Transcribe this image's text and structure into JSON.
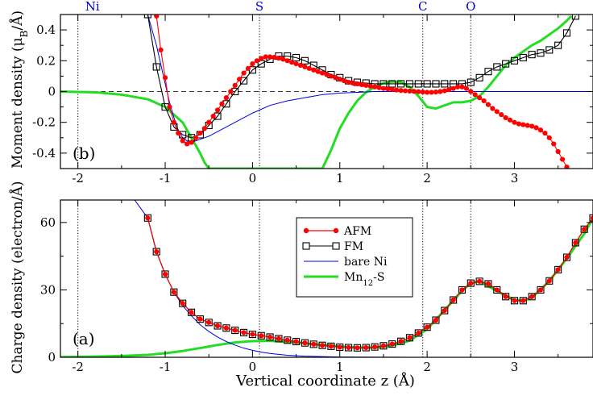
{
  "chart_data": [
    {
      "type": "line",
      "panel_label": "(b)",
      "ylabel": "Moment density (μB/Å)",
      "ylabel_parts": {
        "main": "Moment density (μ",
        "sub": "B",
        "tail": "/Å)"
      },
      "xlim": [
        -2.2,
        3.9
      ],
      "ylim": [
        -0.5,
        0.5
      ],
      "x_ticks": [
        -2,
        -1,
        0,
        1,
        2,
        3
      ],
      "x_tick_labels": [
        "-2",
        "-1",
        "0",
        "1",
        "2",
        "3"
      ],
      "y_ticks": [
        -0.4,
        -0.2,
        0,
        0.2,
        0.4
      ],
      "y_tick_labels": [
        "-0.4",
        "-0.2",
        "0",
        "0.2",
        "0.4"
      ],
      "atom_markers": [
        {
          "label": "Ni",
          "x": -2.0
        },
        {
          "label": "S",
          "x": 0.08
        },
        {
          "label": "C",
          "x": 1.95
        },
        {
          "label": "O",
          "x": 2.5
        }
      ],
      "reference_line": 0,
      "series": [
        {
          "name": "AFM",
          "color": "#ff0000",
          "marker": "circle",
          "x": [
            -1.1,
            -1.05,
            -1.0,
            -0.95,
            -0.9,
            -0.85,
            -0.8,
            -0.75,
            -0.7,
            -0.65,
            -0.6,
            -0.55,
            -0.5,
            -0.45,
            -0.4,
            -0.35,
            -0.3,
            -0.25,
            -0.2,
            -0.15,
            -0.1,
            -0.05,
            0.0,
            0.05,
            0.1,
            0.15,
            0.2,
            0.25,
            0.3,
            0.35,
            0.4,
            0.45,
            0.5,
            0.55,
            0.6,
            0.65,
            0.7,
            0.75,
            0.8,
            0.85,
            0.9,
            0.95,
            1.0,
            1.05,
            1.1,
            1.15,
            1.2,
            1.25,
            1.3,
            1.35,
            1.4,
            1.45,
            1.5,
            1.55,
            1.6,
            1.65,
            1.7,
            1.75,
            1.8,
            1.85,
            1.9,
            1.95,
            2.0,
            2.05,
            2.1,
            2.15,
            2.2,
            2.25,
            2.3,
            2.35,
            2.4,
            2.45,
            2.5,
            2.55,
            2.6,
            2.65,
            2.7,
            2.75,
            2.8,
            2.85,
            2.9,
            2.95,
            3.0,
            3.05,
            3.1,
            3.15,
            3.2,
            3.25,
            3.3,
            3.35,
            3.4,
            3.45,
            3.5,
            3.55,
            3.6
          ],
          "y": [
            0.49,
            0.27,
            0.09,
            -0.1,
            -0.2,
            -0.27,
            -0.32,
            -0.34,
            -0.33,
            -0.3,
            -0.27,
            -0.24,
            -0.2,
            -0.16,
            -0.12,
            -0.08,
            -0.04,
            0.0,
            0.04,
            0.08,
            0.12,
            0.15,
            0.18,
            0.2,
            0.215,
            0.225,
            0.225,
            0.222,
            0.217,
            0.21,
            0.2,
            0.19,
            0.18,
            0.17,
            0.16,
            0.15,
            0.14,
            0.13,
            0.12,
            0.11,
            0.1,
            0.09,
            0.08,
            0.07,
            0.06,
            0.055,
            0.05,
            0.045,
            0.04,
            0.035,
            0.03,
            0.025,
            0.02,
            0.017,
            0.014,
            0.01,
            0.007,
            0.005,
            0.003,
            0.001,
            -0.001,
            -0.003,
            -0.005,
            -0.005,
            -0.003,
            0.0,
            0.005,
            0.012,
            0.02,
            0.03,
            0.03,
            0.02,
            0.0,
            -0.02,
            -0.04,
            -0.06,
            -0.085,
            -0.11,
            -0.13,
            -0.15,
            -0.17,
            -0.185,
            -0.2,
            -0.21,
            -0.215,
            -0.22,
            -0.225,
            -0.235,
            -0.25,
            -0.27,
            -0.3,
            -0.34,
            -0.39,
            -0.44,
            -0.49
          ]
        },
        {
          "name": "FM",
          "color": "#000000",
          "marker": "square",
          "x": [
            -1.2,
            -1.1,
            -1.0,
            -0.9,
            -0.8,
            -0.7,
            -0.6,
            -0.5,
            -0.4,
            -0.3,
            -0.2,
            -0.1,
            0.0,
            0.1,
            0.2,
            0.3,
            0.4,
            0.5,
            0.6,
            0.7,
            0.8,
            0.9,
            1.0,
            1.1,
            1.2,
            1.3,
            1.4,
            1.5,
            1.6,
            1.7,
            1.8,
            1.9,
            2.0,
            2.1,
            2.2,
            2.3,
            2.4,
            2.5,
            2.6,
            2.7,
            2.8,
            2.9,
            3.0,
            3.1,
            3.2,
            3.3,
            3.4,
            3.5,
            3.6,
            3.7
          ],
          "y": [
            0.5,
            0.16,
            -0.1,
            -0.23,
            -0.28,
            -0.3,
            -0.28,
            -0.22,
            -0.16,
            -0.08,
            0.0,
            0.07,
            0.14,
            0.18,
            0.21,
            0.23,
            0.23,
            0.22,
            0.2,
            0.17,
            0.14,
            0.11,
            0.09,
            0.07,
            0.06,
            0.055,
            0.05,
            0.05,
            0.05,
            0.05,
            0.05,
            0.05,
            0.05,
            0.05,
            0.05,
            0.05,
            0.05,
            0.06,
            0.09,
            0.13,
            0.16,
            0.18,
            0.2,
            0.22,
            0.24,
            0.25,
            0.27,
            0.3,
            0.38,
            0.49
          ]
        },
        {
          "name": "bare Ni",
          "color": "#0000dd",
          "marker": "none",
          "x": [
            -1.2,
            -1.1,
            -1.0,
            -0.95,
            -0.9,
            -0.85,
            -0.8,
            -0.75,
            -0.7,
            -0.65,
            -0.6,
            -0.5,
            -0.4,
            -0.3,
            -0.2,
            -0.1,
            0.0,
            0.2,
            0.4,
            0.6,
            0.8,
            1.0,
            1.2,
            1.4,
            1.6,
            1.8,
            2.0,
            2.5,
            3.0,
            3.5,
            3.9
          ],
          "y": [
            0.5,
            0.3,
            0.05,
            -0.07,
            -0.17,
            -0.25,
            -0.3,
            -0.32,
            -0.33,
            -0.32,
            -0.31,
            -0.29,
            -0.26,
            -0.23,
            -0.2,
            -0.17,
            -0.14,
            -0.09,
            -0.06,
            -0.04,
            -0.02,
            -0.01,
            -0.005,
            0.0,
            0.0,
            0.0,
            0.0,
            0.0,
            0.0,
            0.0,
            0.0
          ]
        },
        {
          "name": "Mn12-S",
          "color": "#22dd22",
          "marker": "none",
          "x": [
            -2.2,
            -1.8,
            -1.5,
            -1.2,
            -1.0,
            -0.8,
            -0.6,
            -0.55,
            -0.5,
            0.2,
            0.4,
            0.5,
            0.6,
            0.7,
            0.8,
            0.9,
            1.0,
            1.1,
            1.2,
            1.3,
            1.4,
            1.5,
            1.6,
            1.7,
            1.8,
            1.9,
            2.0,
            2.1,
            2.2,
            2.3,
            2.4,
            2.5,
            2.6,
            2.7,
            2.8,
            2.9,
            3.0,
            3.1,
            3.2,
            3.3,
            3.4,
            3.5,
            3.6,
            3.65
          ],
          "y": [
            0.0,
            -0.005,
            -0.02,
            -0.05,
            -0.1,
            -0.2,
            -0.4,
            -0.46,
            -0.5,
            -0.5,
            -0.5,
            -0.5,
            -0.5,
            -0.5,
            -0.5,
            -0.38,
            -0.24,
            -0.14,
            -0.06,
            -0.005,
            0.03,
            0.055,
            0.065,
            0.06,
            0.03,
            -0.03,
            -0.1,
            -0.11,
            -0.09,
            -0.07,
            -0.07,
            -0.06,
            -0.03,
            0.03,
            0.1,
            0.17,
            0.22,
            0.26,
            0.3,
            0.33,
            0.37,
            0.41,
            0.46,
            0.49
          ]
        }
      ]
    },
    {
      "type": "line",
      "panel_label": "(a)",
      "xlabel": "Vertical coordinate  z (Å)",
      "ylabel": "Charge density (electron/Å)",
      "xlim": [
        -2.2,
        3.9
      ],
      "ylim": [
        0,
        70
      ],
      "x_ticks": [
        -2,
        -1,
        0,
        1,
        2,
        3
      ],
      "x_tick_labels": [
        "-2",
        "-1",
        "0",
        "1",
        "2",
        "3"
      ],
      "y_ticks": [
        0,
        30,
        60
      ],
      "y_tick_labels": [
        "0",
        "30",
        "60"
      ],
      "legend": {
        "position": "center-right",
        "entries": [
          "AFM",
          "FM",
          "bare Ni",
          "Mn12-S"
        ],
        "mn_parts": {
          "main": "Mn",
          "sub": "12",
          "tail": "-S"
        }
      },
      "series": [
        {
          "name": "AFM",
          "color": "#ff0000",
          "marker": "circle",
          "x": [
            -1.2,
            -1.1,
            -1.0,
            -0.9,
            -0.8,
            -0.7,
            -0.6,
            -0.5,
            -0.4,
            -0.3,
            -0.2,
            -0.1,
            0.0,
            0.1,
            0.2,
            0.3,
            0.4,
            0.5,
            0.6,
            0.7,
            0.8,
            0.9,
            1.0,
            1.1,
            1.2,
            1.3,
            1.4,
            1.5,
            1.6,
            1.7,
            1.8,
            1.9,
            2.0,
            2.1,
            2.2,
            2.3,
            2.4,
            2.5,
            2.6,
            2.7,
            2.8,
            2.9,
            3.0,
            3.1,
            3.2,
            3.3,
            3.4,
            3.5,
            3.6,
            3.7,
            3.8,
            3.9
          ],
          "y": [
            62,
            47,
            37,
            29,
            24,
            20,
            17,
            15.5,
            14,
            13,
            12,
            11,
            10.2,
            9.6,
            9,
            8.3,
            7.6,
            7,
            6.4,
            5.8,
            5.3,
            4.9,
            4.5,
            4.3,
            4.2,
            4.3,
            4.6,
            5.1,
            5.9,
            7.1,
            8.7,
            10.8,
            13.4,
            16.5,
            20.8,
            25.5,
            30,
            33,
            33.8,
            32.7,
            30,
            27,
            25.2,
            25.2,
            27,
            30,
            34,
            39,
            44.5,
            51,
            57,
            62
          ]
        },
        {
          "name": "FM",
          "color": "#000000",
          "marker": "square",
          "x": [
            -1.2,
            -1.1,
            -1.0,
            -0.9,
            -0.8,
            -0.7,
            -0.6,
            -0.5,
            -0.4,
            -0.3,
            -0.2,
            -0.1,
            0.0,
            0.1,
            0.2,
            0.3,
            0.4,
            0.5,
            0.6,
            0.7,
            0.8,
            0.9,
            1.0,
            1.1,
            1.2,
            1.3,
            1.4,
            1.5,
            1.6,
            1.7,
            1.8,
            1.9,
            2.0,
            2.1,
            2.2,
            2.3,
            2.4,
            2.5,
            2.6,
            2.7,
            2.8,
            2.9,
            3.0,
            3.1,
            3.2,
            3.3,
            3.4,
            3.5,
            3.6,
            3.7,
            3.8,
            3.9
          ],
          "y": [
            62,
            47,
            37,
            29,
            24,
            20,
            17,
            15.5,
            14,
            13,
            12,
            11,
            10.2,
            9.6,
            9,
            8.3,
            7.6,
            7,
            6.4,
            5.8,
            5.3,
            4.9,
            4.5,
            4.3,
            4.2,
            4.3,
            4.6,
            5.1,
            5.9,
            7.1,
            8.7,
            10.8,
            13.4,
            16.5,
            20.8,
            25.5,
            30,
            33,
            33.8,
            32.7,
            30,
            27,
            25.2,
            25.2,
            27,
            30,
            34,
            39,
            44.5,
            51,
            57,
            62
          ]
        },
        {
          "name": "bare Ni",
          "color": "#0000dd",
          "marker": "none",
          "x": [
            -1.35,
            -1.2,
            -1.1,
            -1.0,
            -0.9,
            -0.8,
            -0.7,
            -0.6,
            -0.5,
            -0.4,
            -0.3,
            -0.2,
            -0.1,
            0.0,
            0.1,
            0.2,
            0.4,
            0.6,
            0.8,
            1.0,
            1.2,
            1.6,
            2.0,
            3.0,
            3.9
          ],
          "y": [
            70,
            62,
            47,
            37,
            29,
            23,
            18.5,
            14.5,
            11.5,
            9,
            7,
            5.4,
            4.1,
            3.1,
            2.3,
            1.7,
            0.9,
            0.5,
            0.3,
            0.15,
            0.08,
            0.03,
            0.0,
            0.0,
            0.0
          ]
        },
        {
          "name": "Mn12-S",
          "color": "#22dd22",
          "marker": "none",
          "x": [
            -2.2,
            -1.8,
            -1.5,
            -1.2,
            -1.0,
            -0.8,
            -0.6,
            -0.4,
            -0.2,
            0.0,
            0.2,
            0.4,
            0.6,
            0.8,
            1.0,
            1.2,
            1.4,
            1.6,
            1.8,
            2.0,
            2.2,
            2.4,
            2.5,
            2.6,
            2.8,
            3.0,
            3.1,
            3.2,
            3.4,
            3.6,
            3.8,
            3.9
          ],
          "y": [
            0.1,
            0.3,
            0.6,
            1.1,
            1.8,
            2.8,
            4.1,
            5.5,
            6.6,
            7.2,
            7.3,
            6.9,
            6.2,
            5.5,
            4.8,
            4.3,
            4.3,
            5.2,
            7.4,
            12.5,
            21,
            29.5,
            33,
            33.8,
            29.5,
            25.5,
            25.2,
            26.5,
            34,
            44,
            55,
            62
          ]
        }
      ]
    }
  ]
}
